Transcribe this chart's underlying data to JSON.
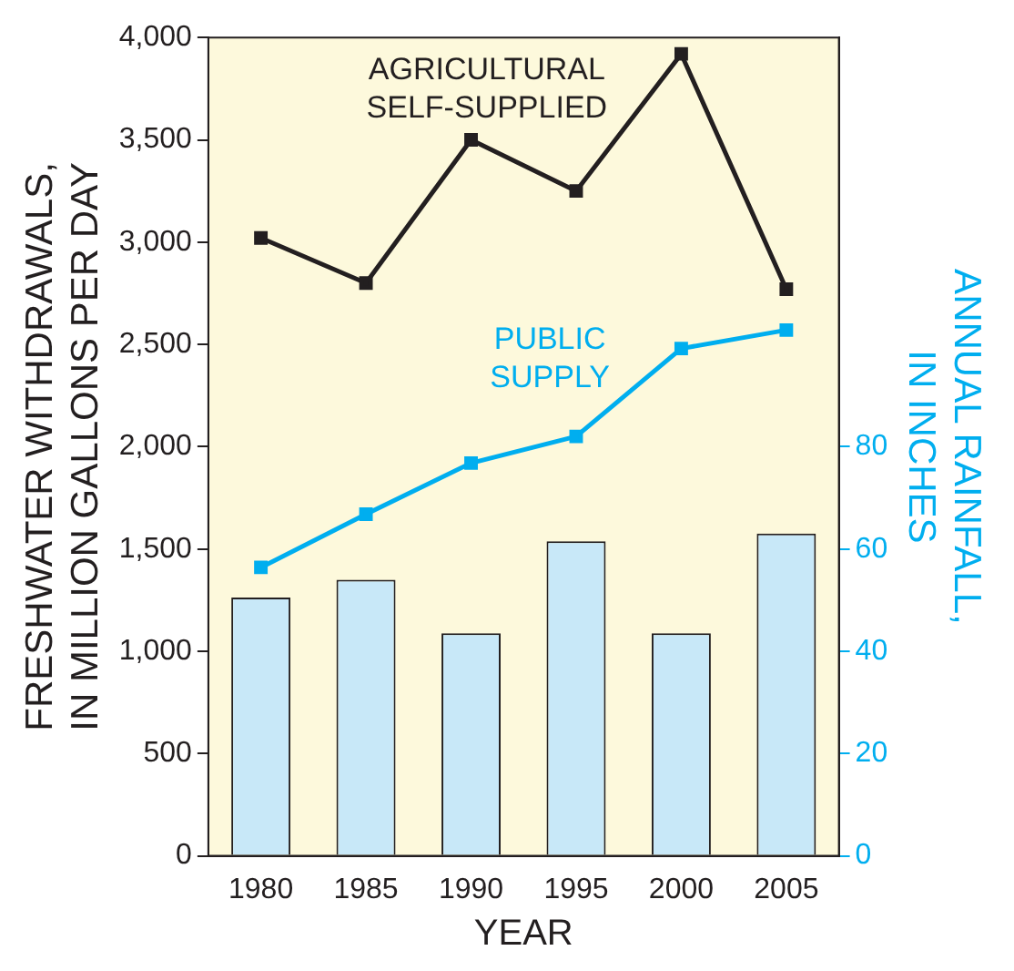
{
  "chart_data": {
    "type": "line",
    "xlabel": "YEAR",
    "ylabel": "FRESHWATER WITHDRAWALS,\nIN MILLION GALLONS PER DAY",
    "y2label": "ANNUAL RAINFALL,\nIN INCHES",
    "categories": [
      "1980",
      "1985",
      "1990",
      "1995",
      "2000",
      "2005"
    ],
    "series": [
      {
        "type": "bar",
        "axis": "y2",
        "color": "#c8e8f8",
        "values": [
          50.5,
          54,
          43.5,
          61.5,
          43.5,
          63
        ]
      },
      {
        "name": "AGRICULTURAL\nSELF-SUPPLIED",
        "color": "#231f20",
        "values": [
          3020,
          2800,
          3500,
          3250,
          3920,
          2770
        ]
      },
      {
        "name": "PUBLIC\nSUPPLY",
        "color": "#00aeef",
        "values": [
          1410,
          1670,
          1920,
          2050,
          2480,
          2570
        ]
      }
    ],
    "ylim": [
      0,
      4000
    ],
    "yticks": [
      0,
      500,
      {
        "value": 1000,
        "label": "1,000"
      },
      {
        "value": 1500,
        "label": "1,500"
      },
      {
        "value": 2000,
        "label": "2,000"
      },
      {
        "value": 2500,
        "label": "2,500"
      },
      {
        "value": 3000,
        "label": "3,000"
      },
      {
        "value": 3500,
        "label": "3,500"
      },
      {
        "value": 4000,
        "label": "4,000"
      }
    ],
    "y2lim": [
      0,
      160
    ],
    "y2ticks": [
      0,
      20,
      40,
      60,
      80
    ],
    "marker": "square",
    "line_style": "solid",
    "grid": false,
    "legend": false
  }
}
